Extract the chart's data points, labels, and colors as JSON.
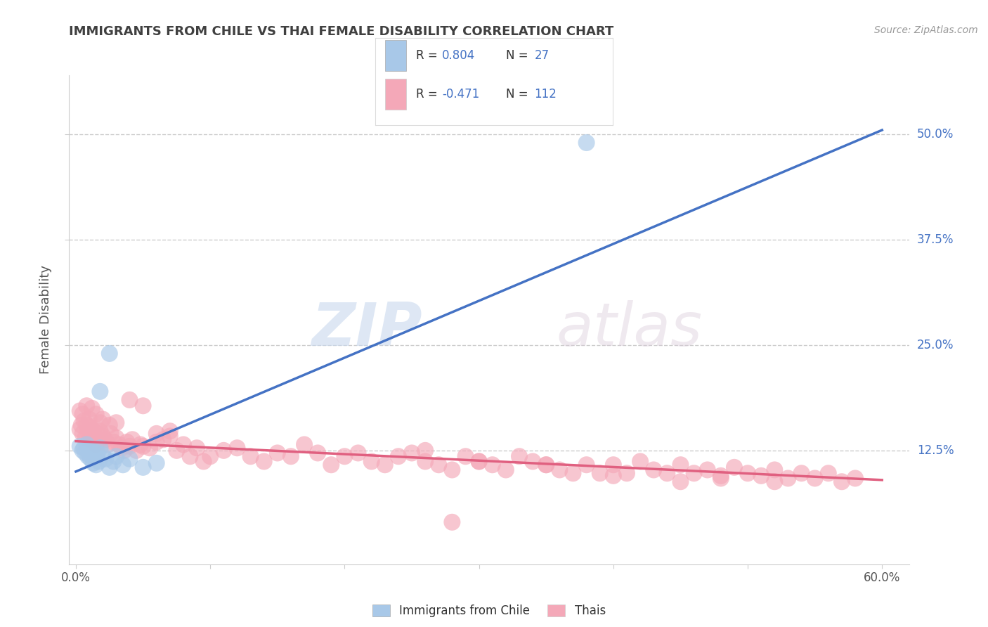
{
  "title": "IMMIGRANTS FROM CHILE VS THAI FEMALE DISABILITY CORRELATION CHART",
  "source": "Source: ZipAtlas.com",
  "ylabel": "Female Disability",
  "xlim": [
    -0.005,
    0.62
  ],
  "ylim": [
    -0.01,
    0.57
  ],
  "xtick_values": [
    0.0,
    0.1,
    0.2,
    0.3,
    0.4,
    0.5,
    0.6
  ],
  "xtick_edge_labels": [
    "0.0%",
    "",
    "",
    "",
    "",
    "",
    "60.0%"
  ],
  "ytick_values": [
    0.125,
    0.25,
    0.375,
    0.5
  ],
  "ytick_labels": [
    "12.5%",
    "25.0%",
    "37.5%",
    "50.0%"
  ],
  "chile_color": "#a8c8e8",
  "thai_color": "#f4a8b8",
  "chile_line_color": "#4472c4",
  "thai_line_color": "#e06080",
  "chile_R": 0.804,
  "chile_N": 27,
  "thai_R": -0.471,
  "thai_N": 112,
  "legend_label_chile": "Immigrants from Chile",
  "legend_label_thai": "Thais",
  "watermark_zip": "ZIP",
  "watermark_atlas": "atlas",
  "background_color": "#ffffff",
  "grid_color": "#cccccc",
  "title_color": "#404040",
  "r_n_color": "#4472c4",
  "legend_box_color": "#ffffff",
  "chile_line_x0": 0.0,
  "chile_line_y0": 0.1,
  "chile_line_x1": 0.6,
  "chile_line_y1": 0.505,
  "thai_line_x0": 0.0,
  "thai_line_y0": 0.136,
  "thai_line_x1": 0.6,
  "thai_line_y1": 0.09,
  "chile_scatter_x": [
    0.003,
    0.005,
    0.006,
    0.007,
    0.008,
    0.009,
    0.01,
    0.011,
    0.012,
    0.013,
    0.014,
    0.015,
    0.016,
    0.017,
    0.018,
    0.02,
    0.022,
    0.025,
    0.028,
    0.03,
    0.035,
    0.04,
    0.05,
    0.06,
    0.025,
    0.018,
    0.38
  ],
  "chile_scatter_y": [
    0.13,
    0.125,
    0.128,
    0.122,
    0.132,
    0.118,
    0.12,
    0.115,
    0.125,
    0.11,
    0.118,
    0.108,
    0.122,
    0.112,
    0.128,
    0.12,
    0.115,
    0.105,
    0.112,
    0.118,
    0.108,
    0.115,
    0.105,
    0.11,
    0.24,
    0.195,
    0.49
  ],
  "thai_scatter_x": [
    0.003,
    0.004,
    0.005,
    0.006,
    0.007,
    0.008,
    0.009,
    0.01,
    0.011,
    0.012,
    0.013,
    0.014,
    0.015,
    0.016,
    0.017,
    0.018,
    0.019,
    0.02,
    0.022,
    0.024,
    0.026,
    0.028,
    0.03,
    0.032,
    0.034,
    0.036,
    0.038,
    0.04,
    0.042,
    0.045,
    0.048,
    0.05,
    0.055,
    0.06,
    0.065,
    0.07,
    0.075,
    0.08,
    0.085,
    0.09,
    0.095,
    0.1,
    0.11,
    0.12,
    0.13,
    0.14,
    0.15,
    0.16,
    0.17,
    0.18,
    0.19,
    0.2,
    0.21,
    0.22,
    0.23,
    0.24,
    0.25,
    0.26,
    0.27,
    0.28,
    0.29,
    0.3,
    0.31,
    0.32,
    0.33,
    0.34,
    0.35,
    0.36,
    0.37,
    0.38,
    0.39,
    0.4,
    0.41,
    0.42,
    0.43,
    0.44,
    0.45,
    0.46,
    0.47,
    0.48,
    0.49,
    0.5,
    0.51,
    0.52,
    0.53,
    0.54,
    0.55,
    0.56,
    0.57,
    0.58,
    0.003,
    0.005,
    0.008,
    0.01,
    0.012,
    0.015,
    0.018,
    0.02,
    0.025,
    0.03,
    0.04,
    0.05,
    0.4,
    0.45,
    0.35,
    0.3,
    0.28,
    0.26,
    0.48,
    0.52,
    0.06,
    0.07
  ],
  "thai_scatter_y": [
    0.15,
    0.155,
    0.145,
    0.16,
    0.14,
    0.155,
    0.148,
    0.138,
    0.152,
    0.142,
    0.148,
    0.138,
    0.132,
    0.145,
    0.135,
    0.148,
    0.138,
    0.142,
    0.138,
    0.132,
    0.145,
    0.135,
    0.14,
    0.132,
    0.128,
    0.125,
    0.135,
    0.13,
    0.138,
    0.125,
    0.132,
    0.13,
    0.128,
    0.135,
    0.138,
    0.142,
    0.125,
    0.132,
    0.118,
    0.128,
    0.112,
    0.118,
    0.125,
    0.128,
    0.118,
    0.112,
    0.122,
    0.118,
    0.132,
    0.122,
    0.108,
    0.118,
    0.122,
    0.112,
    0.108,
    0.118,
    0.122,
    0.112,
    0.108,
    0.102,
    0.118,
    0.112,
    0.108,
    0.102,
    0.118,
    0.112,
    0.108,
    0.102,
    0.098,
    0.108,
    0.098,
    0.108,
    0.098,
    0.112,
    0.102,
    0.098,
    0.108,
    0.098,
    0.102,
    0.095,
    0.105,
    0.098,
    0.095,
    0.102,
    0.092,
    0.098,
    0.092,
    0.098,
    0.088,
    0.092,
    0.172,
    0.168,
    0.178,
    0.162,
    0.175,
    0.168,
    0.158,
    0.162,
    0.155,
    0.158,
    0.185,
    0.178,
    0.095,
    0.088,
    0.108,
    0.112,
    0.04,
    0.125,
    0.092,
    0.088,
    0.145,
    0.148
  ]
}
